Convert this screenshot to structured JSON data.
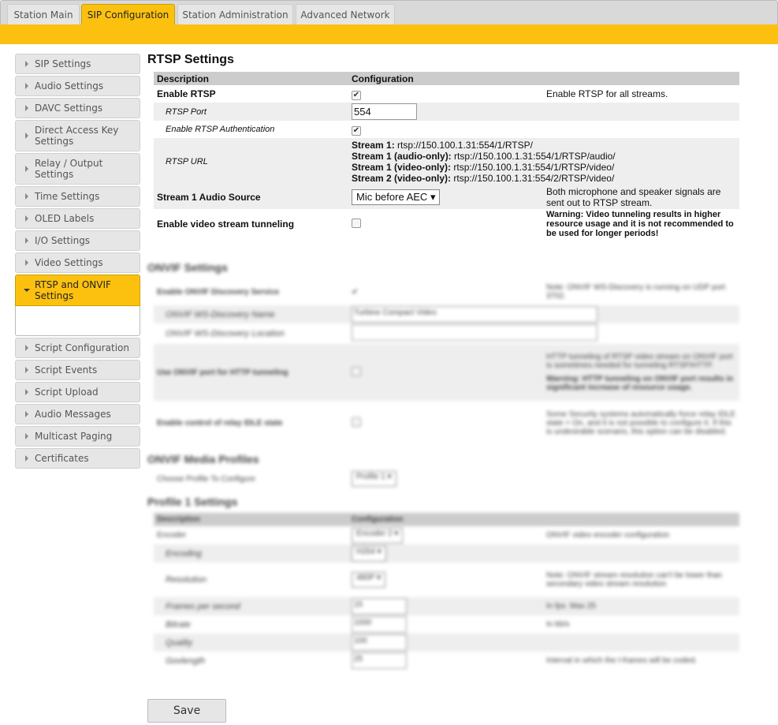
{
  "tabs": [
    "Station Main",
    "SIP Configuration",
    "Station Administration",
    "Advanced Network"
  ],
  "active_tab": "SIP Configuration",
  "sidebar": {
    "items": [
      "SIP Settings",
      "Audio Settings",
      "DAVC Settings",
      "Direct Access Key Settings",
      "Relay / Output Settings",
      "Time Settings",
      "OLED Labels",
      "I/O Settings",
      "Video Settings",
      "RTSP and ONVIF Settings",
      "Script Configuration",
      "Script Events",
      "Script Upload",
      "Audio Messages",
      "Multicast Paging",
      "Certificates"
    ],
    "active": "RTSP and ONVIF Settings"
  },
  "rtsp": {
    "title": "RTSP Settings",
    "col_description": "Description",
    "col_configuration": "Configuration",
    "enable_label": "Enable RTSP",
    "enable_checked": true,
    "enable_note": "Enable RTSP for all streams.",
    "port_label": "RTSP Port",
    "port_value": "554",
    "auth_label": "Enable RTSP Authentication",
    "auth_checked": true,
    "url_label": "RTSP URL",
    "urls": [
      {
        "name": "Stream 1:",
        "url": "rtsp://150.100.1.31:554/1/RTSP/"
      },
      {
        "name": "Stream 1 (audio-only):",
        "url": "rtsp://150.100.1.31:554/1/RTSP/audio/"
      },
      {
        "name": "Stream 1 (video-only):",
        "url": "rtsp://150.100.1.31:554/1/RTSP/video/"
      },
      {
        "name": "Stream 2 (video-only):",
        "url": "rtsp://150.100.1.31:554/2/RTSP/video/"
      }
    ],
    "audio_source_label": "Stream 1 Audio Source",
    "audio_source_value": "Mic before AEC",
    "audio_source_note": "Both microphone and speaker signals are sent out to RTSP stream.",
    "tunnel_label": "Enable video stream tunneling",
    "tunnel_checked": false,
    "tunnel_note": "Warning: Video tunneling results in higher resource usage and it is not recommended to be used for longer periods!"
  },
  "onvif": {
    "title": "ONVIF Settings",
    "discovery_label": "Enable ONVIF Discovery Service",
    "discovery_note": "Note: ONVIF WS-Discovery is running on UDP port 3702.",
    "name_label": "ONVIF WS-Discovery Name",
    "name_value": "Turbine Compact Video",
    "location_label": "ONVIF WS-Discovery Location",
    "location_value": "",
    "http_label": "Use ONVIF port for HTTP tunneling",
    "http_note": "HTTP tunneling of RTSP video stream on ONVIF port is sometimes needed for tunneling RTSP/HTTP.",
    "http_warning": "Warning: HTTP tunneling on ONVIF port results in significant increase of resource usage.",
    "relay_label": "Enable control of relay IDLE state",
    "relay_note": "Some Security systems automatically force relay IDLE state = On, and it is not possible to configure it. If this is undesirable scenario, this option can be disabled."
  },
  "media": {
    "title": "ONVIF Media Profiles",
    "choose_label": "Choose Profile To Configure",
    "choose_value": "Profile 1"
  },
  "profile": {
    "title": "Profile 1 Settings",
    "rows": [
      {
        "label": "Encoder",
        "value": "Encoder 2",
        "note": "ONVIF video encoder configuration",
        "type": "select"
      },
      {
        "label": "Encoding",
        "value": "H264",
        "note": "",
        "type": "select"
      },
      {
        "label": "Resolution",
        "value": "480P",
        "note": "Note: ONVIF stream resolution can't be lower than secondary video stream resolution",
        "type": "select"
      },
      {
        "label": "Frames per second",
        "value": "15",
        "note": "In fps. Max 25",
        "type": "input"
      },
      {
        "label": "Bitrate",
        "value": "1000",
        "note": "In kb/s",
        "type": "input"
      },
      {
        "label": "Quality",
        "value": "100",
        "note": "",
        "type": "input"
      },
      {
        "label": "Govlength",
        "value": "25",
        "note": "Interval in which the I-frames will be coded.",
        "type": "input"
      }
    ]
  },
  "save_label": "Save",
  "colors": {
    "accent": "#fcc10f"
  }
}
